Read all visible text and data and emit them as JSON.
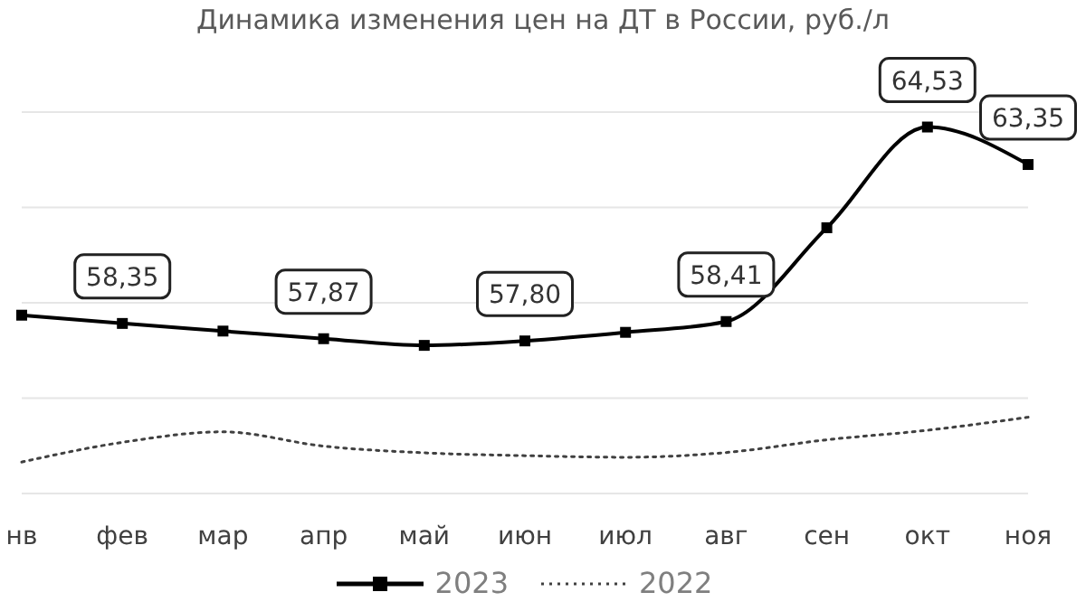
{
  "chart_data": {
    "type": "line",
    "title": "Динамика изменения цен на ДТ в России, руб./л",
    "categories": [
      "нв",
      "фев",
      "мар",
      "апр",
      "май",
      "июн",
      "июл",
      "авг",
      "сен",
      "окт",
      "ноя"
    ],
    "series": [
      {
        "name": "2023",
        "color": "#000000",
        "marker": "square",
        "line_style": "solid",
        "values": [
          58.61,
          58.35,
          58.11,
          57.87,
          57.66,
          57.8,
          58.07,
          58.41,
          61.36,
          64.53,
          63.35
        ],
        "value_labels": [
          null,
          "58,35",
          null,
          "57,87",
          null,
          "57,80",
          null,
          "58,41",
          null,
          "64,53",
          "63,35"
        ]
      },
      {
        "name": "2022",
        "color": "#404040",
        "marker": "none",
        "line_style": "dotted",
        "values": [
          53.99,
          54.61,
          54.94,
          54.49,
          54.28,
          54.19,
          54.14,
          54.29,
          54.69,
          54.99,
          55.4
        ]
      }
    ],
    "ylim": [
      53,
      65
    ],
    "yticks": [
      {
        "value": 53,
        "label": null
      },
      {
        "value": 56,
        "label": null
      },
      {
        "value": 59,
        "label": null
      },
      {
        "value": 62,
        "label": null
      },
      {
        "value": 65,
        "label": null
      }
    ],
    "tick_labels": "x",
    "grid": "y",
    "legend": "bottom"
  }
}
